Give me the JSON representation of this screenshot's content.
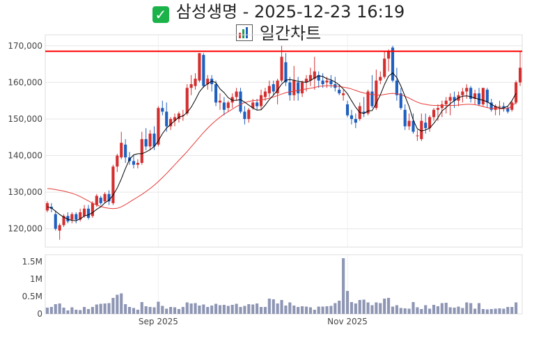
{
  "header": {
    "check_icon": "check-mark-button-icon",
    "title_text": "삼성생명 - 2025-12-23 16:19",
    "chart_icon": "bar-chart-icon",
    "subtitle_text": "일간차트"
  },
  "colors": {
    "up": "#d32f2f",
    "down": "#1f5fbf",
    "ma_short": "#000000",
    "ma_long": "#e53935",
    "hline": "#ff0000",
    "volume": "#8e96b4"
  },
  "chart_data": [
    {
      "type": "candlestick",
      "title": "삼성생명 - 2025-12-23 16:19 일간차트",
      "ylim": [
        115000,
        173000
      ],
      "y_ticks": [
        120000,
        130000,
        140000,
        150000,
        160000,
        170000
      ],
      "y_tick_labels": [
        "120,000",
        "130,000",
        "140,000",
        "150,000",
        "160,000",
        "170,000"
      ],
      "x_ticks": [
        {
          "index": 27,
          "label": "Sep 2025"
        },
        {
          "index": 73,
          "label": "Nov 2025"
        }
      ],
      "hline": 168500,
      "ohlc": [
        [
          125000,
          127500,
          124500,
          127000
        ],
        [
          126000,
          127000,
          124500,
          125500
        ],
        [
          124000,
          125000,
          119500,
          120000
        ],
        [
          119500,
          121500,
          117000,
          121000
        ],
        [
          121000,
          124000,
          120500,
          123500
        ],
        [
          123500,
          124500,
          121500,
          122000
        ],
        [
          122500,
          124500,
          121500,
          124000
        ],
        [
          124000,
          124500,
          121500,
          122500
        ],
        [
          122500,
          125500,
          122000,
          124500
        ],
        [
          123500,
          126500,
          123000,
          125500
        ],
        [
          125500,
          126500,
          122500,
          123000
        ],
        [
          123500,
          127500,
          123000,
          127000
        ],
        [
          126500,
          129500,
          126000,
          129000
        ],
        [
          128500,
          129000,
          126500,
          127000
        ],
        [
          127500,
          130000,
          127000,
          129500
        ],
        [
          129500,
          130500,
          126500,
          127500
        ],
        [
          127000,
          137500,
          126500,
          137000
        ],
        [
          137000,
          140500,
          135500,
          140000
        ],
        [
          139500,
          146500,
          139000,
          143500
        ],
        [
          143000,
          144500,
          138000,
          139500
        ],
        [
          139500,
          141000,
          137500,
          138500
        ],
        [
          138500,
          140000,
          136500,
          137500
        ],
        [
          137500,
          139000,
          136500,
          138000
        ],
        [
          138000,
          146500,
          137500,
          144500
        ],
        [
          144500,
          147500,
          141500,
          142500
        ],
        [
          142500,
          147000,
          141500,
          146000
        ],
        [
          146000,
          148000,
          141500,
          142500
        ],
        [
          143000,
          153500,
          142500,
          153000
        ],
        [
          153000,
          155000,
          151000,
          152000
        ],
        [
          152000,
          154500,
          146500,
          148000
        ],
        [
          148000,
          150500,
          147000,
          150000
        ],
        [
          149500,
          151500,
          148000,
          150500
        ],
        [
          150000,
          152000,
          149000,
          151500
        ],
        [
          151000,
          152500,
          149500,
          151000
        ],
        [
          151500,
          159500,
          151000,
          158500
        ],
        [
          158500,
          162000,
          156500,
          159500
        ],
        [
          159000,
          162500,
          158000,
          161000
        ],
        [
          160500,
          168000,
          160000,
          168000
        ],
        [
          167500,
          168000,
          158500,
          159000
        ],
        [
          159500,
          162000,
          158000,
          161000
        ],
        [
          161000,
          162000,
          157500,
          159500
        ],
        [
          159500,
          160500,
          153500,
          154500
        ],
        [
          154500,
          157000,
          152500,
          155000
        ],
        [
          154500,
          156000,
          151000,
          152500
        ],
        [
          153000,
          155000,
          152000,
          154500
        ],
        [
          154500,
          157000,
          153000,
          156000
        ],
        [
          156000,
          158500,
          155000,
          157500
        ],
        [
          157500,
          158500,
          151500,
          152000
        ],
        [
          152000,
          153500,
          148500,
          150000
        ],
        [
          150000,
          153000,
          149000,
          152500
        ],
        [
          153000,
          155500,
          152500,
          154500
        ],
        [
          154500,
          155500,
          152500,
          153500
        ],
        [
          153500,
          158000,
          152500,
          156500
        ],
        [
          156000,
          158500,
          155000,
          157500
        ],
        [
          157000,
          160500,
          156000,
          159000
        ],
        [
          159500,
          160500,
          156500,
          157500
        ],
        [
          157000,
          161000,
          154000,
          160500
        ],
        [
          160500,
          170000,
          160000,
          167000
        ],
        [
          165500,
          168000,
          159000,
          160000
        ],
        [
          160000,
          161500,
          155000,
          156500
        ],
        [
          156500,
          164500,
          155000,
          160500
        ],
        [
          160000,
          161500,
          155000,
          157000
        ],
        [
          157000,
          160500,
          156000,
          160000
        ],
        [
          160000,
          162000,
          157500,
          161000
        ],
        [
          160500,
          164000,
          159000,
          162000
        ],
        [
          161000,
          167000,
          158000,
          163000
        ],
        [
          162000,
          163000,
          158500,
          160500
        ],
        [
          160500,
          162500,
          158500,
          159500
        ],
        [
          160000,
          161500,
          158500,
          160500
        ],
        [
          160500,
          162000,
          158500,
          159500
        ],
        [
          159500,
          161500,
          157500,
          158500
        ],
        [
          158000,
          159500,
          156500,
          157000
        ],
        [
          156500,
          158000,
          155000,
          157000
        ],
        [
          154000,
          155000,
          150500,
          151000
        ],
        [
          151000,
          152500,
          148500,
          150000
        ],
        [
          150000,
          151500,
          147500,
          149000
        ],
        [
          150000,
          154500,
          149500,
          153500
        ],
        [
          152000,
          156000,
          150500,
          151500
        ],
        [
          151500,
          158000,
          151000,
          157500
        ],
        [
          157500,
          162000,
          153000,
          153500
        ],
        [
          153000,
          163500,
          152500,
          160500
        ],
        [
          160500,
          163000,
          159500,
          161500
        ],
        [
          161500,
          168500,
          161000,
          166500
        ],
        [
          166500,
          169000,
          163000,
          168500
        ],
        [
          169500,
          170000,
          160000,
          160500
        ],
        [
          160500,
          164000,
          155000,
          156500
        ],
        [
          157000,
          158500,
          152500,
          153000
        ],
        [
          152500,
          154000,
          147000,
          148000
        ],
        [
          148000,
          151500,
          147000,
          149500
        ],
        [
          149500,
          151500,
          146000,
          146500
        ],
        [
          145500,
          147000,
          144000,
          145500
        ],
        [
          144500,
          151500,
          144000,
          149500
        ],
        [
          149000,
          151500,
          146000,
          147500
        ],
        [
          147500,
          151000,
          146500,
          150500
        ],
        [
          150500,
          153000,
          149500,
          152500
        ],
        [
          152500,
          154000,
          149500,
          153000
        ],
        [
          153000,
          155000,
          150500,
          154000
        ],
        [
          154000,
          156000,
          151500,
          155000
        ],
        [
          155000,
          157000,
          151000,
          156000
        ],
        [
          156000,
          157500,
          153000,
          155000
        ],
        [
          155000,
          157500,
          153500,
          156500
        ],
        [
          156500,
          158500,
          154500,
          157500
        ],
        [
          157500,
          159500,
          155500,
          158500
        ],
        [
          158500,
          159000,
          154500,
          155500
        ],
        [
          155500,
          158000,
          154000,
          157000
        ],
        [
          157000,
          158500,
          153500,
          154000
        ],
        [
          154000,
          158500,
          153500,
          158500
        ],
        [
          158000,
          158500,
          153000,
          154500
        ],
        [
          154500,
          155500,
          152000,
          152500
        ],
        [
          152500,
          154000,
          151000,
          153500
        ],
        [
          153500,
          155000,
          151000,
          153500
        ],
        [
          153500,
          154500,
          152000,
          153000
        ],
        [
          153000,
          153500,
          151500,
          152000
        ],
        [
          152500,
          155000,
          152000,
          154500
        ],
        [
          154500,
          160500,
          154000,
          160000
        ],
        [
          160000,
          168500,
          159000,
          164000
        ]
      ],
      "ma_short": [
        126000,
        125700,
        124800,
        123900,
        123200,
        122600,
        122300,
        122200,
        122700,
        123500,
        123800,
        124400,
        125300,
        126000,
        127100,
        127800,
        129200,
        131100,
        133600,
        136500,
        139000,
        140200,
        140500,
        140500,
        141000,
        141600,
        142500,
        144000,
        146000,
        147500,
        148500,
        149500,
        150500,
        150800,
        151800,
        153200,
        155200,
        157400,
        158800,
        159600,
        160400,
        159900,
        158200,
        157200,
        155800,
        155100,
        155100,
        155300,
        154600,
        153800,
        153000,
        152400,
        152500,
        153800,
        155300,
        156500,
        157900,
        159500,
        160600,
        160800,
        160600,
        160300,
        160100,
        160000,
        160500,
        161200,
        161800,
        161600,
        161000,
        160700,
        160100,
        159300,
        158200,
        156900,
        155000,
        153200,
        151800,
        151500,
        152200,
        152300,
        154300,
        156600,
        159400,
        161700,
        162600,
        161300,
        159000,
        156200,
        153400,
        149700,
        147300,
        146700,
        147000,
        147500,
        148800,
        150300,
        152200,
        153100,
        154200,
        155000,
        155800,
        156200,
        156300,
        156100,
        155700,
        155400,
        155100,
        154700,
        154000,
        153400,
        153000,
        153000,
        153500,
        155000,
        157000
      ],
      "ma_long": [
        131000,
        130900,
        130700,
        130500,
        130300,
        130000,
        129700,
        129300,
        128800,
        128200,
        127600,
        127000,
        126500,
        126100,
        125800,
        125600,
        125500,
        125600,
        126000,
        126600,
        127300,
        128000,
        128700,
        129400,
        130200,
        131000,
        131900,
        132900,
        134000,
        135100,
        136300,
        137500,
        138700,
        139900,
        141100,
        142400,
        143700,
        145000,
        146300,
        147500,
        148600,
        149600,
        150500,
        151300,
        152000,
        152700,
        153400,
        154000,
        154500,
        154800,
        155000,
        155100,
        155200,
        155400,
        155700,
        156000,
        156400,
        156800,
        157200,
        157400,
        157600,
        157800,
        158000,
        158200,
        158400,
        158600,
        158900,
        159000,
        159100,
        159100,
        159000,
        158900,
        158700,
        158500,
        158200,
        157800,
        157400,
        157100,
        156900,
        156700,
        156600,
        156500,
        156700,
        156900,
        157000,
        156900,
        156600,
        156200,
        155700,
        155100,
        154600,
        154200,
        154000,
        153800,
        153700,
        153700,
        153700,
        153700,
        153700,
        153700,
        153800,
        153900,
        154000,
        154000,
        153900,
        153700,
        153400,
        153100,
        152900,
        152800,
        152800,
        152800,
        152900,
        153500,
        154500
      ],
      "volume": [
        180000,
        200000,
        280000,
        300000,
        180000,
        100000,
        190000,
        120000,
        110000,
        200000,
        140000,
        200000,
        270000,
        290000,
        300000,
        310000,
        460000,
        550000,
        590000,
        280000,
        200000,
        170000,
        120000,
        340000,
        220000,
        200000,
        190000,
        350000,
        230000,
        150000,
        200000,
        190000,
        140000,
        200000,
        330000,
        300000,
        310000,
        240000,
        270000,
        200000,
        240000,
        290000,
        250000,
        260000,
        230000,
        260000,
        290000,
        200000,
        230000,
        280000,
        270000,
        300000,
        200000,
        200000,
        440000,
        420000,
        300000,
        400000,
        240000,
        330000,
        240000,
        200000,
        220000,
        210000,
        190000,
        120000,
        210000,
        210000,
        220000,
        230000,
        310000,
        380000,
        1600000,
        660000,
        340000,
        300000,
        400000,
        410000,
        330000,
        250000,
        330000,
        310000,
        440000,
        460000,
        210000,
        250000,
        170000,
        160000,
        150000,
        340000,
        190000,
        140000,
        250000,
        150000,
        260000,
        220000,
        310000,
        320000,
        190000,
        180000,
        210000,
        170000,
        330000,
        310000,
        150000,
        310000,
        140000,
        130000,
        140000,
        150000,
        160000,
        150000,
        200000,
        200000,
        330000
      ],
      "volume_ylim": [
        0,
        1700000
      ],
      "volume_ticks": [
        0,
        500000,
        1000000,
        1500000
      ],
      "volume_tick_labels": [
        "0",
        "0.5M",
        "1M",
        "1.5M"
      ]
    }
  ]
}
